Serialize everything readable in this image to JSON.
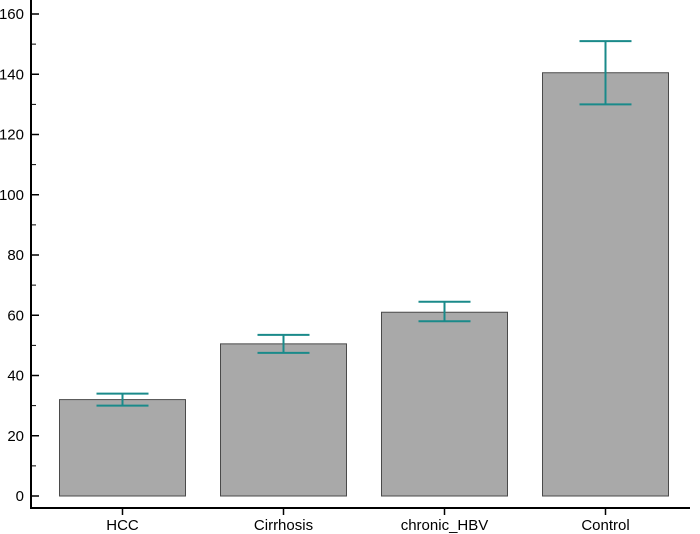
{
  "chart_data": {
    "type": "bar",
    "categories": [
      "HCC",
      "Cirrhosis",
      "chronic_HBV",
      "Control"
    ],
    "values": [
      32,
      50.5,
      61,
      140.5
    ],
    "error_bars": {
      "upper": [
        34,
        53.5,
        64.5,
        151
      ],
      "lower": [
        30,
        47.5,
        58,
        130
      ]
    },
    "title": "",
    "xlabel": "",
    "ylabel": "",
    "ylim": [
      0,
      160
    ],
    "yticks": [
      0,
      20,
      40,
      60,
      80,
      100,
      120,
      140,
      160
    ],
    "ytick_labels": [
      "0",
      "20",
      "40",
      "60",
      "80",
      "100",
      "120",
      "140",
      "160"
    ],
    "grid": false,
    "legend": "none",
    "colors": {
      "bar_fill": "#a9a9a9",
      "bar_stroke": "#4a4a4a",
      "error_bar": "#1a8a8a",
      "axis": "#000000"
    }
  }
}
